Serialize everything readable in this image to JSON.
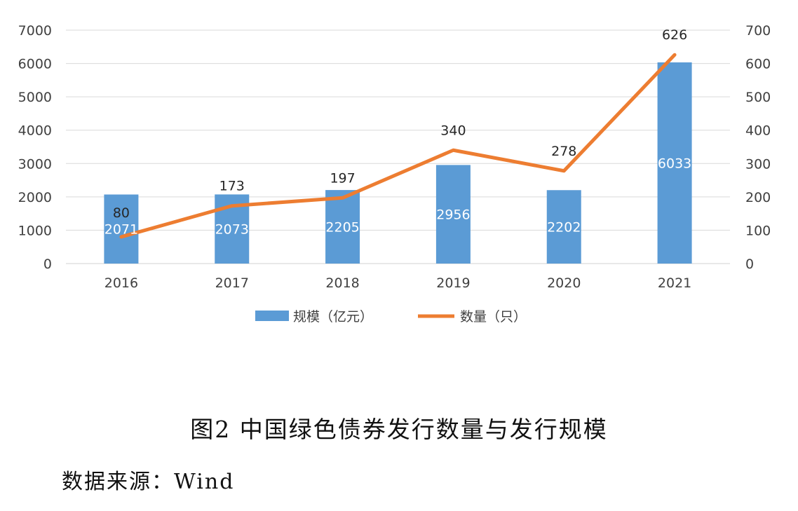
{
  "chart_data": {
    "type": "bar",
    "categories": [
      "2016",
      "2017",
      "2018",
      "2019",
      "2020",
      "2021"
    ],
    "series": [
      {
        "name": "规模（亿元）",
        "type": "bar",
        "axis": "left",
        "values": [
          2071,
          2073,
          2205,
          2956,
          2202,
          6033
        ],
        "color": "#5B9BD5"
      },
      {
        "name": "数量（只）",
        "type": "line",
        "axis": "right",
        "values": [
          80,
          173,
          197,
          340,
          278,
          626
        ],
        "color": "#ED7D31"
      }
    ],
    "ylim_left": [
      0,
      7000
    ],
    "ylim_right": [
      0,
      700
    ],
    "yticks_left": [
      "0",
      "1000",
      "2000",
      "3000",
      "4000",
      "5000",
      "6000",
      "7000"
    ],
    "yticks_right": [
      "0",
      "100",
      "200",
      "300",
      "400",
      "500",
      "600",
      "700"
    ],
    "grid": true,
    "legend": "bottom"
  },
  "caption": "图2 中国绿色债券发行数量与发行规模",
  "source": "数据来源：Wind"
}
